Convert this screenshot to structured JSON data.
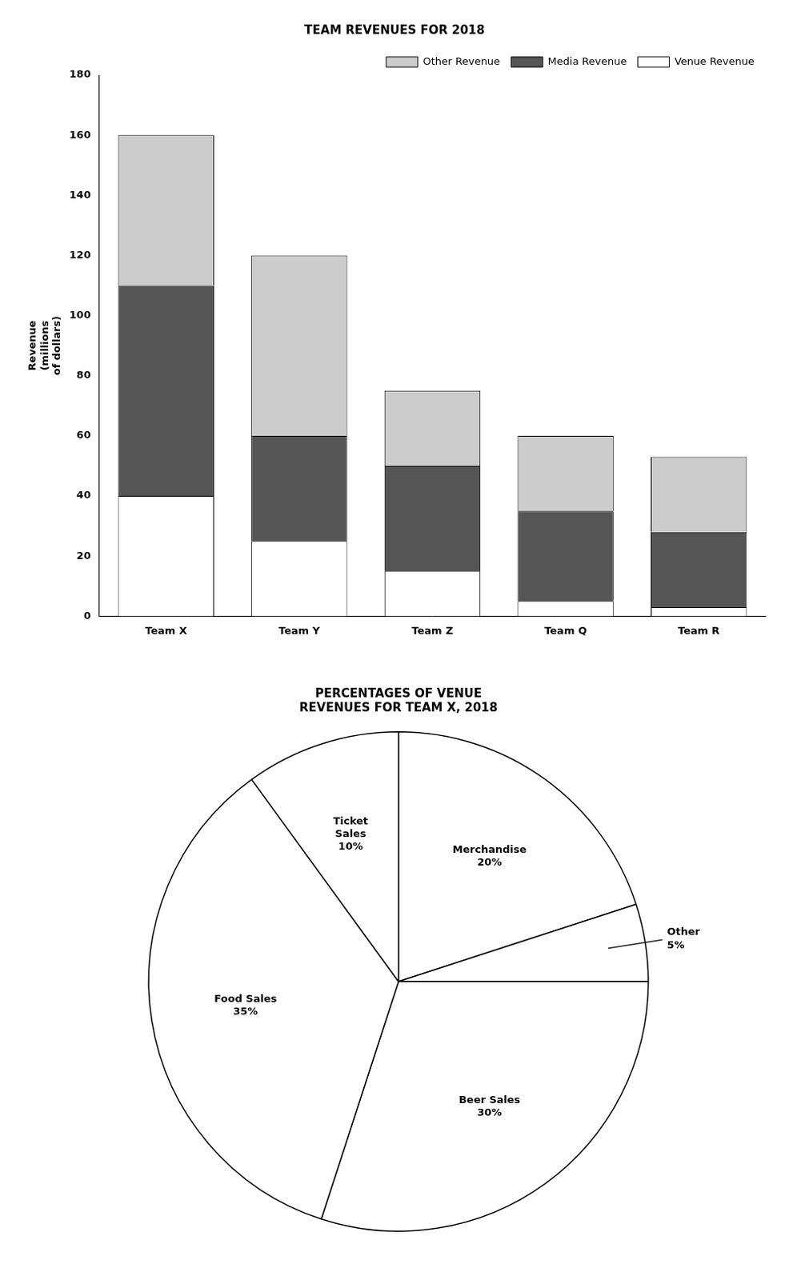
{
  "chart_data": [
    {
      "type": "bar",
      "title": "TEAM REVENUES FOR 2018",
      "categories": [
        "Team X",
        "Team Y",
        "Team Z",
        "Team Q",
        "Team R"
      ],
      "series": [
        {
          "name": "Venue Revenue",
          "color": "#ffffff",
          "values": [
            40,
            25,
            15,
            5,
            3
          ]
        },
        {
          "name": "Media Revenue",
          "color": "#555555",
          "values": [
            70,
            35,
            35,
            30,
            25
          ]
        },
        {
          "name": "Other Revenue",
          "color": "#cccccc",
          "values": [
            50,
            60,
            25,
            25,
            25
          ]
        }
      ],
      "ylabel": "Revenue\n(millions\nof dollars)",
      "ylim": [
        0,
        180
      ],
      "yticks": [
        0,
        20,
        40,
        60,
        80,
        100,
        120,
        140,
        160,
        180
      ],
      "stacked": true,
      "legend": "upper right",
      "grid": false
    },
    {
      "type": "pie",
      "title": "PERCENTAGES OF VENUE\nREVENUES FOR TEAM X, 2018",
      "categories": [
        "Merchandise",
        "Other",
        "Beer Sales",
        "Food Sales",
        "Ticket\nSales"
      ],
      "values": [
        20,
        5,
        30,
        35,
        10
      ],
      "value_labels": [
        "20%",
        "5%",
        "30%",
        "35%",
        "10%"
      ],
      "colors": [
        "#ffffff",
        "#ffffff",
        "#ffffff",
        "#ffffff",
        "#ffffff"
      ],
      "data_labels": true
    }
  ]
}
